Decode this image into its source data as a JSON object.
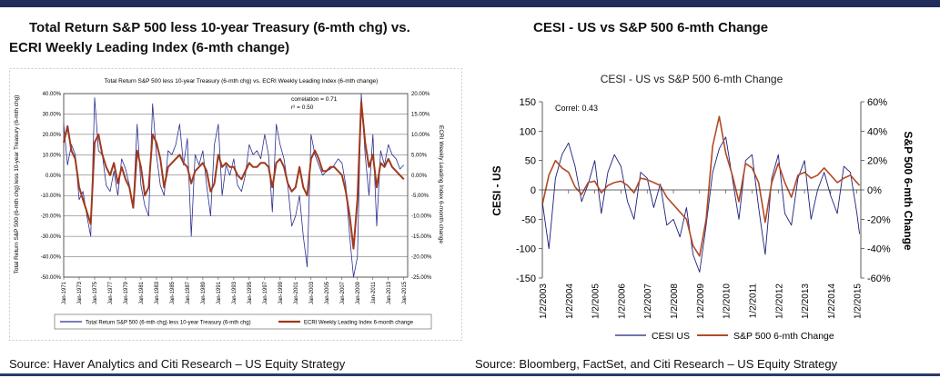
{
  "page": {
    "left_heading_line1": "Total Return  S&P 500 less 10-year Treasury (6-mth chg) vs.",
    "left_heading_line2": "ECRI Weekly Leading Index (6-mth change)",
    "right_heading": "CESI - US vs S&P 500 6-mth Change",
    "left_source": "Source: Haver Analytics and Citi Research – US Equity Strategy",
    "right_source": "Source: Bloomberg, FactSet, and Citi Research – US Equity Strategy"
  },
  "chart_data": [
    {
      "type": "line",
      "title": "Total Return  S&P 500 less 10-year Treasury (6-mth chg) vs. ECRI Weekly Leading Index (6-mth change)",
      "ylabel": "Total Return  S&P 500 (6-mth chg) less 10-year Treasury (6-mth chg)",
      "y2label": "ECRI Weekly Leading Index 6-month change",
      "ylim": [
        -50,
        40
      ],
      "y2lim": [
        -25,
        20
      ],
      "y_ticks": [
        "40.00%",
        "30.00%",
        "20.00%",
        "10.00%",
        "0.00%",
        "-10.00%",
        "-20.00%",
        "-30.00%",
        "-40.00%",
        "-50.00%"
      ],
      "y2_ticks": [
        "20.00%",
        "15.00%",
        "10.00%",
        "5.00%",
        "0.00%",
        "-5.00%",
        "-10.00%",
        "-15.00%",
        "-20.00%",
        "-25.00%"
      ],
      "x_ticks": [
        "Jan-1971",
        "Jan-1973",
        "Jan-1975",
        "Jan-1977",
        "Jan-1979",
        "Jan-1981",
        "Jan-1983",
        "Jan-1985",
        "Jan-1987",
        "Jan-1989",
        "Jan-1991",
        "Jan-1993",
        "Jan-1995",
        "Jan-1997",
        "Jan-1999",
        "Jan-2001",
        "Jan-2003",
        "Jan-2005",
        "Jan-2007",
        "Jan-2009",
        "Jan-2011",
        "Jan-2013",
        "Jan-2015"
      ],
      "annotations": [
        "correlation = 0.71",
        "r² = 0.50"
      ],
      "legend": "bottom",
      "series": [
        {
          "name": "Total Return  S&P 500 (6-mth chg) less 10-year Treasury (6-mth chg)",
          "axis": "left",
          "color": "#2b2f8f",
          "x": [
            1971,
            1971.5,
            1972,
            1972.5,
            1973,
            1973.5,
            1974,
            1974.5,
            1975,
            1975.5,
            1976,
            1976.5,
            1977,
            1977.5,
            1978,
            1978.5,
            1979,
            1979.5,
            1980,
            1980.5,
            1981,
            1981.5,
            1982,
            1982.5,
            1983,
            1983.5,
            1984,
            1984.5,
            1985,
            1985.5,
            1986,
            1986.5,
            1987,
            1987.5,
            1988,
            1988.5,
            1989,
            1989.5,
            1990,
            1990.5,
            1991,
            1991.5,
            1992,
            1992.5,
            1993,
            1993.5,
            1994,
            1994.5,
            1995,
            1995.5,
            1996,
            1996.5,
            1997,
            1997.5,
            1998,
            1998.5,
            1999,
            1999.5,
            2000,
            2000.5,
            2001,
            2001.5,
            2002,
            2002.5,
            2003,
            2003.5,
            2004,
            2004.5,
            2005,
            2005.5,
            2006,
            2006.5,
            2007,
            2007.5,
            2008,
            2008.5,
            2009,
            2009.5,
            2010,
            2010.5,
            2011,
            2011.5,
            2012,
            2012.5,
            2013,
            2013.5,
            2014,
            2014.5,
            2015
          ],
          "values": [
            25,
            5,
            15,
            10,
            -12,
            -8,
            -20,
            -30,
            38,
            12,
            10,
            -5,
            -8,
            2,
            -10,
            8,
            3,
            -5,
            -15,
            25,
            -5,
            -15,
            -20,
            35,
            10,
            -5,
            -10,
            12,
            10,
            15,
            25,
            5,
            18,
            -30,
            10,
            5,
            12,
            -5,
            -20,
            15,
            25,
            -10,
            5,
            0,
            8,
            -5,
            -8,
            0,
            15,
            10,
            12,
            8,
            20,
            10,
            -18,
            25,
            15,
            8,
            -5,
            -25,
            -20,
            -10,
            -30,
            -45,
            20,
            10,
            5,
            0,
            2,
            3,
            5,
            8,
            6,
            -5,
            -30,
            -50,
            -40,
            40,
            10,
            -10,
            20,
            -25,
            12,
            5,
            15,
            10,
            8,
            3,
            5
          ]
        },
        {
          "name": "ECRI Weekly Leading Index 6-month change",
          "axis": "right",
          "color": "#a0391d",
          "x": [
            1971,
            1971.5,
            1972,
            1972.5,
            1973,
            1973.5,
            1974,
            1974.5,
            1975,
            1975.5,
            1976,
            1976.5,
            1977,
            1977.5,
            1978,
            1978.5,
            1979,
            1979.5,
            1980,
            1980.5,
            1981,
            1981.5,
            1982,
            1982.5,
            1983,
            1983.5,
            1984,
            1984.5,
            1985,
            1985.5,
            1986,
            1986.5,
            1987,
            1987.5,
            1988,
            1988.5,
            1989,
            1989.5,
            1990,
            1990.5,
            1991,
            1991.5,
            1992,
            1992.5,
            1993,
            1993.5,
            1994,
            1994.5,
            1995,
            1995.5,
            1996,
            1996.5,
            1997,
            1997.5,
            1998,
            1998.5,
            1999,
            1999.5,
            2000,
            2000.5,
            2001,
            2001.5,
            2002,
            2002.5,
            2003,
            2003.5,
            2004,
            2004.5,
            2005,
            2005.5,
            2006,
            2006.5,
            2007,
            2007.5,
            2008,
            2008.5,
            2009,
            2009.5,
            2010,
            2010.5,
            2011,
            2011.5,
            2012,
            2012.5,
            2013,
            2013.5,
            2014,
            2014.5,
            2015
          ],
          "values": [
            8,
            12,
            6,
            4,
            -3,
            -6,
            -9,
            -12,
            8,
            10,
            5,
            2,
            0,
            3,
            -2,
            2,
            -1,
            -3,
            -8,
            6,
            2,
            -5,
            -3,
            10,
            8,
            4,
            -3,
            2,
            3,
            4,
            5,
            3,
            2,
            -2,
            1,
            2,
            3,
            1,
            -4,
            -2,
            5,
            2,
            3,
            2,
            2,
            0,
            -1,
            1,
            3,
            2,
            2,
            3,
            3,
            2,
            -3,
            3,
            4,
            2,
            -2,
            -4,
            -3,
            2,
            -3,
            -5,
            4,
            6,
            4,
            1,
            1,
            2,
            2,
            1,
            0,
            -4,
            -10,
            -18,
            -6,
            18,
            8,
            2,
            5,
            -3,
            3,
            2,
            4,
            2,
            1,
            0,
            -1
          ]
        }
      ]
    },
    {
      "type": "line",
      "title": "CESI - US vs S&P 500 6-mth Change",
      "ylabel": "CESI - US",
      "y2label": "S&P 500 6-mth Change",
      "ylim": [
        -150,
        150
      ],
      "y2lim": [
        -60,
        60
      ],
      "y_ticks": [
        "150",
        "100",
        "50",
        "0",
        "-50",
        "-100",
        "-150"
      ],
      "y2_ticks": [
        "60%",
        "40%",
        "20%",
        "0%",
        "-20%",
        "-40%",
        "-60%"
      ],
      "x_ticks": [
        "1/2/2003",
        "1/2/2004",
        "1/2/2005",
        "1/2/2006",
        "1/2/2007",
        "1/2/2008",
        "1/2/2009",
        "1/2/2010",
        "1/2/2011",
        "1/2/2012",
        "1/2/2013",
        "1/2/2014",
        "1/2/2015"
      ],
      "annotations": [
        "Correl: 0.43"
      ],
      "legend": "bottom",
      "series": [
        {
          "name": "CESI US",
          "axis": "left",
          "color": "#1b1f7a",
          "x": [
            2003,
            2003.25,
            2003.5,
            2003.75,
            2004,
            2004.25,
            2004.5,
            2004.75,
            2005,
            2005.25,
            2005.5,
            2005.75,
            2006,
            2006.25,
            2006.5,
            2006.75,
            2007,
            2007.25,
            2007.5,
            2007.75,
            2008,
            2008.25,
            2008.5,
            2008.75,
            2009,
            2009.25,
            2009.5,
            2009.75,
            2010,
            2010.25,
            2010.5,
            2010.75,
            2011,
            2011.25,
            2011.5,
            2011.75,
            2012,
            2012.25,
            2012.5,
            2012.75,
            2013,
            2013.25,
            2013.5,
            2013.75,
            2014,
            2014.25,
            2014.5,
            2014.75,
            2015,
            2015.1
          ],
          "values": [
            -20,
            -100,
            20,
            60,
            80,
            40,
            -20,
            10,
            50,
            -40,
            30,
            60,
            40,
            -20,
            -50,
            30,
            20,
            -30,
            10,
            -60,
            -50,
            -80,
            -30,
            -110,
            -140,
            -60,
            30,
            70,
            90,
            20,
            -50,
            50,
            60,
            -30,
            -110,
            20,
            60,
            -40,
            -60,
            20,
            50,
            -50,
            0,
            30,
            -10,
            -40,
            40,
            30,
            -40,
            -75
          ]
        },
        {
          "name": "S&P 500 6-mth Change",
          "axis": "right",
          "color": "#b24a26",
          "x": [
            2003,
            2003.25,
            2003.5,
            2003.75,
            2004,
            2004.25,
            2004.5,
            2004.75,
            2005,
            2005.25,
            2005.5,
            2005.75,
            2006,
            2006.25,
            2006.5,
            2006.75,
            2007,
            2007.25,
            2007.5,
            2007.75,
            2008,
            2008.25,
            2008.5,
            2008.75,
            2009,
            2009.25,
            2009.5,
            2009.75,
            2010,
            2010.25,
            2010.5,
            2010.75,
            2011,
            2011.25,
            2011.5,
            2011.75,
            2012,
            2012.25,
            2012.5,
            2012.75,
            2013,
            2013.25,
            2013.5,
            2013.75,
            2014,
            2014.25,
            2014.5,
            2014.75,
            2015,
            2015.1
          ],
          "values": [
            -10,
            10,
            20,
            15,
            12,
            2,
            -3,
            5,
            6,
            -2,
            3,
            5,
            6,
            3,
            -2,
            8,
            7,
            5,
            3,
            -5,
            -10,
            -15,
            -20,
            -38,
            -45,
            -20,
            30,
            50,
            25,
            10,
            -8,
            18,
            15,
            5,
            -22,
            5,
            18,
            5,
            -5,
            10,
            12,
            8,
            10,
            15,
            10,
            5,
            8,
            10,
            5,
            3
          ]
        }
      ]
    }
  ]
}
